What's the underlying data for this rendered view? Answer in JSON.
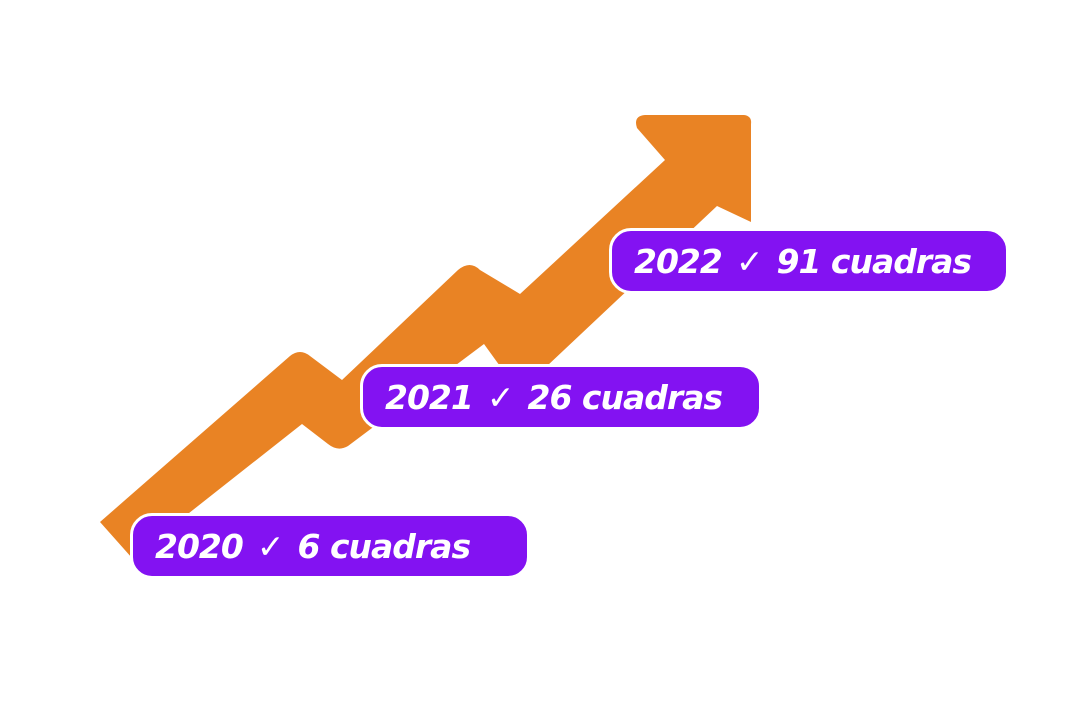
{
  "colors": {
    "arrow": "#e98324",
    "label_bg": "#8312f2"
  },
  "arrow_icon": "rising-zigzag-arrow",
  "milestones": [
    {
      "year": "2020",
      "check": "✓",
      "text": "6 cuadras"
    },
    {
      "year": "2021",
      "check": "✓",
      "text": "26 cuadras"
    },
    {
      "year": "2022",
      "check": "✓",
      "text": "91 cuadras"
    }
  ]
}
